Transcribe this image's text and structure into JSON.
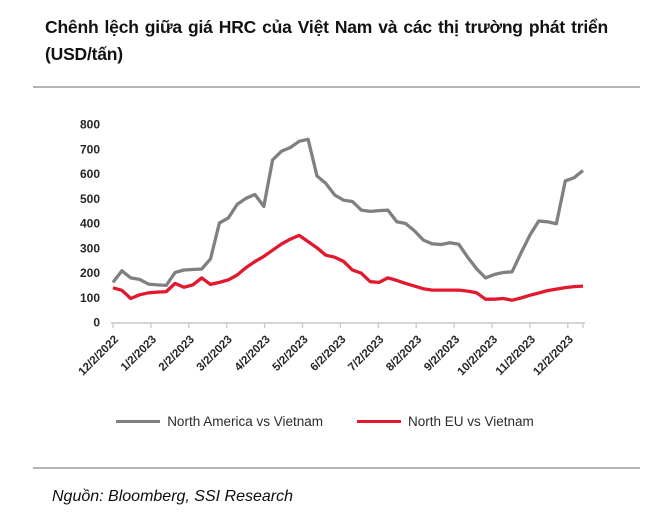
{
  "header": {
    "title": "Chênh lệch giữa giá HRC của Việt Nam và các thị trường phát triển (USD/tấn)"
  },
  "footer": {
    "source": "Nguồn: Bloomberg, SSI Research"
  },
  "chart_data": {
    "type": "line",
    "title": "Chênh lệch giữa giá HRC của Việt Nam và các thị trường phát triển (USD/tấn)",
    "frequency": "weekly",
    "ylim": [
      0,
      800
    ],
    "y_ticks": [
      0,
      100,
      200,
      300,
      400,
      500,
      600,
      700,
      800
    ],
    "x_tick_labels": [
      "12/2/2022",
      "1/2/2023",
      "2/2/2023",
      "3/2/2023",
      "4/2/2023",
      "5/2/2023",
      "6/2/2023",
      "7/2/2023",
      "8/2/2023",
      "9/2/2023",
      "10/2/2023",
      "11/2/2023",
      "12/2/2023"
    ],
    "grid": false,
    "legend_position": "bottom",
    "series": [
      {
        "name": "North America vs Vietnam",
        "color": "#808080",
        "values": [
          160,
          207,
          178,
          172,
          153,
          150,
          148,
          200,
          210,
          212,
          214,
          255,
          400,
          420,
          475,
          500,
          515,
          467,
          655,
          690,
          705,
          730,
          738,
          590,
          560,
          513,
          492,
          487,
          452,
          447,
          450,
          452,
          405,
          398,
          368,
          331,
          316,
          313,
          320,
          314,
          262,
          215,
          178,
          192,
          200,
          203,
          278,
          350,
          408,
          405,
          397,
          570,
          583,
          612
        ]
      },
      {
        "name": "North EU vs Vietnam",
        "color": "#e2182e",
        "values": [
          138,
          128,
          95,
          110,
          118,
          121,
          123,
          156,
          140,
          150,
          178,
          152,
          160,
          170,
          190,
          220,
          244,
          265,
          290,
          315,
          335,
          350,
          325,
          300,
          270,
          262,
          245,
          210,
          197,
          163,
          160,
          178,
          168,
          156,
          145,
          134,
          129,
          129,
          129,
          129,
          125,
          118,
          92,
          92,
          95,
          88,
          97,
          108,
          117,
          127,
          133,
          139,
          143,
          145
        ]
      }
    ]
  }
}
